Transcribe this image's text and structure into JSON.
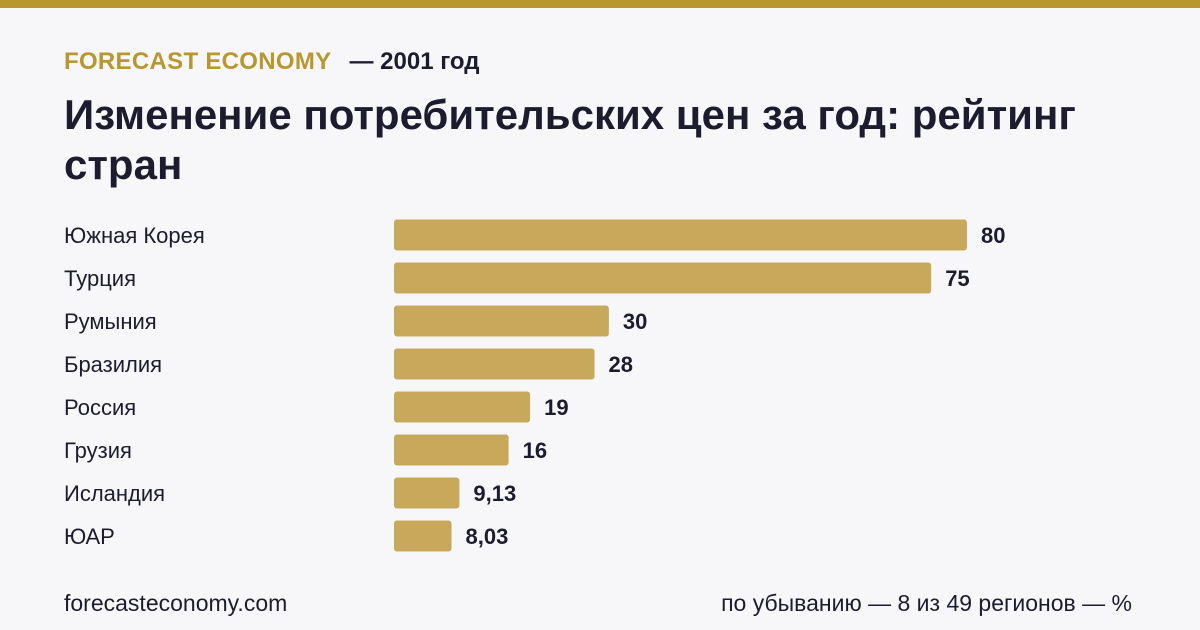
{
  "header": {
    "brand": "FORECAST ECONOMY",
    "year_label": "— 2001 год"
  },
  "title": "Изменение потребительских цен за год: рейтинг стран",
  "footer": {
    "site": "forecasteconomy.com",
    "note": "по убыванию — 8 из 49 регионов — %"
  },
  "colors": {
    "accent": "#b8972f",
    "bar": "#c8a95c",
    "text": "#1c1c2e",
    "background": "#f7f7fa"
  },
  "chart_data": {
    "type": "bar",
    "orientation": "horizontal",
    "categories": [
      "Южная Корея",
      "Турция",
      "Румыния",
      "Бразилия",
      "Россия",
      "Грузия",
      "Исландия",
      "ЮАР"
    ],
    "values": [
      80,
      75,
      30,
      28,
      19,
      16,
      9.13,
      8.03
    ],
    "value_labels": [
      "80",
      "75",
      "30",
      "28",
      "19",
      "16",
      "9,13",
      "8,03"
    ],
    "xlim": [
      0,
      80
    ],
    "grid": false,
    "legend": "none"
  }
}
